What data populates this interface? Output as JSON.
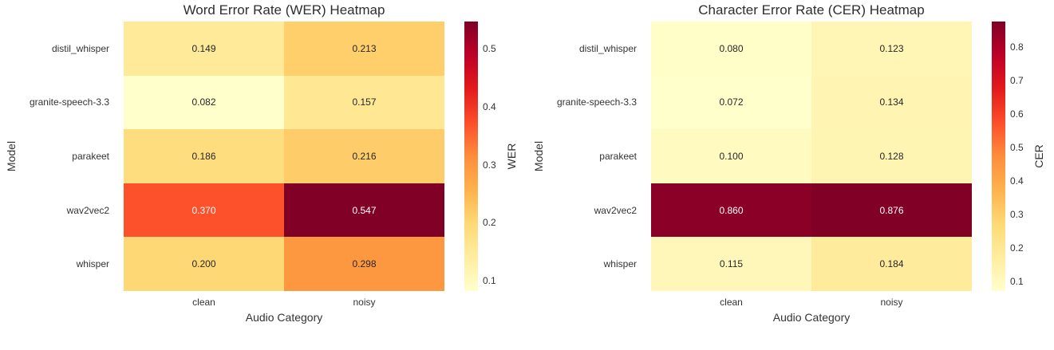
{
  "figure": {
    "background": "#ffffff",
    "text_color": "#262626",
    "annotation_text_dark": "#262626",
    "annotation_text_light": "#ffffff"
  },
  "chart_data": [
    {
      "type": "heatmap",
      "title": "Word Error Rate (WER) Heatmap",
      "xlabel": "Audio Category",
      "ylabel": "Model",
      "colorbar_label": "WER",
      "colormap": "YlOrRd",
      "colormap_colors": [
        "#ffffcc",
        "#ffeda0",
        "#fed976",
        "#feb24c",
        "#fd8d3c",
        "#fc4e2a",
        "#e31a1c",
        "#bd0026",
        "#800026"
      ],
      "x_categories": [
        "clean",
        "noisy"
      ],
      "y_categories": [
        "distil_whisper",
        "granite-speech-3.3",
        "parakeet",
        "wav2vec2",
        "whisper"
      ],
      "values": [
        [
          0.149,
          0.213
        ],
        [
          0.082,
          0.157
        ],
        [
          0.186,
          0.216
        ],
        [
          0.37,
          0.547
        ],
        [
          0.2,
          0.298
        ]
      ],
      "vmin": 0.082,
      "vmax": 0.547,
      "colorbar_ticks": [
        0.1,
        0.2,
        0.3,
        0.4,
        0.5
      ],
      "decimals": 3,
      "grid": false,
      "legend": false
    },
    {
      "type": "heatmap",
      "title": "Character Error Rate (CER) Heatmap",
      "xlabel": "Audio Category",
      "ylabel": "Model",
      "colorbar_label": "CER",
      "colormap": "YlOrRd",
      "colormap_colors": [
        "#ffffcc",
        "#ffeda0",
        "#fed976",
        "#feb24c",
        "#fd8d3c",
        "#fc4e2a",
        "#e31a1c",
        "#bd0026",
        "#800026"
      ],
      "x_categories": [
        "clean",
        "noisy"
      ],
      "y_categories": [
        "distil_whisper",
        "granite-speech-3.3",
        "parakeet",
        "wav2vec2",
        "whisper"
      ],
      "values": [
        [
          0.08,
          0.123
        ],
        [
          0.072,
          0.134
        ],
        [
          0.1,
          0.128
        ],
        [
          0.86,
          0.876
        ],
        [
          0.115,
          0.184
        ]
      ],
      "vmin": 0.072,
      "vmax": 0.876,
      "colorbar_ticks": [
        0.1,
        0.2,
        0.3,
        0.4,
        0.5,
        0.6,
        0.7,
        0.8
      ],
      "decimals": 3,
      "grid": false,
      "legend": false
    }
  ]
}
